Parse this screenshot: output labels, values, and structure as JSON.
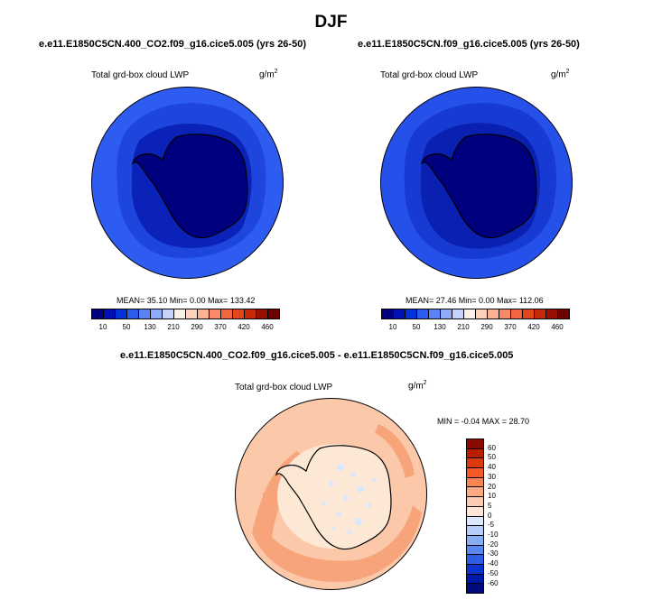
{
  "title": "DJF",
  "panels": [
    {
      "case": "e.e11.E1850C5CN.400_CO2.f09_g16.cice5.005 (yrs 26-50)",
      "variable": "Total grd-box cloud LWP",
      "units": "g/m",
      "units_exp": "2",
      "stats": "MEAN=  35.10  Min=   0.00  Max= 133.42"
    },
    {
      "case": "e.e11.E1850C5CN.f09_g16.cice5.005 (yrs 26-50)",
      "variable": "Total grd-box cloud LWP",
      "units": "g/m",
      "units_exp": "2",
      "stats": "MEAN=  27.46  Min=   0.00  Max= 112.06"
    }
  ],
  "colorbar": {
    "ticks": [
      "10",
      "50",
      "130",
      "210",
      "290",
      "370",
      "420",
      "460"
    ],
    "colors": [
      "#00007f",
      "#0010b5",
      "#0032da",
      "#2a5cf0",
      "#5a84f5",
      "#8eaafa",
      "#c4d2fc",
      "#fbf0e8",
      "#fcd2bc",
      "#fbb192",
      "#f98a65",
      "#f1663d",
      "#e34719",
      "#c62a07",
      "#9a1000",
      "#6e0000"
    ]
  },
  "diff": {
    "case": "e.e11.E1850C5CN.400_CO2.f09_g16.cice5.005 - e.e11.E1850C5CN.f09_g16.cice5.005",
    "variable": "Total grd-box cloud LWP",
    "units": "g/m",
    "units_exp": "2",
    "stats": "MIN =  -0.04 MAX =  28.70",
    "ticks": [
      "60",
      "50",
      "40",
      "30",
      "20",
      "10",
      "5",
      "0",
      "-5",
      "-10",
      "-20",
      "-30",
      "-40",
      "-50",
      "-60"
    ],
    "colors": [
      "#8a0a00",
      "#b81e00",
      "#dc3a0f",
      "#f35a28",
      "#f98553",
      "#fbaa82",
      "#fccbb0",
      "#fde6d6",
      "#dce8fc",
      "#b6cdfa",
      "#8aaef6",
      "#5b88f0",
      "#2e5ee6",
      "#0e33cf",
      "#0018a8",
      "#000a7a"
    ]
  },
  "colors": {
    "ocean_a": "#2e5cf0",
    "ring_a": "#1e46dc",
    "inner_a": "#0a22b8",
    "land_a": "#00007f",
    "ocean_b": "#2650ea",
    "ring_b": "#163ad2",
    "inner_b": "#0a20b0",
    "land_b": "#00007f",
    "diff_base": "#fbc9a9",
    "diff_band": "#f8a47b",
    "diff_ice": "#fde8d5",
    "diff_cool": "#dbe7fb"
  }
}
